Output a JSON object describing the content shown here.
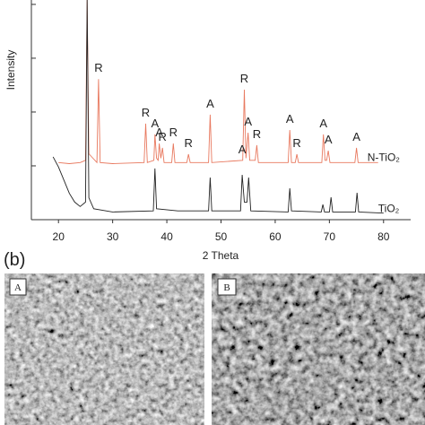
{
  "chart_data": {
    "type": "line",
    "x_label": "2 Theta",
    "y_label": "Intensity",
    "xlim": [
      15,
      85
    ],
    "xticks": [
      20,
      30,
      40,
      50,
      60,
      70,
      80
    ],
    "ylim": [
      0,
      100
    ],
    "yticks": [
      24.5,
      49,
      73.5,
      98
    ],
    "series": [
      {
        "name": "N-TiO₂",
        "color": "#e8785e",
        "x": [
          20,
          22,
          24,
          25.0,
          25.3,
          25.6,
          27.1,
          27.4,
          27.7,
          30,
          35.8,
          36.1,
          36.4,
          37.6,
          37.8,
          38.1,
          38.4,
          38.6,
          38.9,
          39.2,
          39.5,
          40.9,
          41.2,
          41.5,
          43.7,
          44.0,
          44.3,
          47.7,
          48.0,
          48.3,
          54.0,
          54.3,
          54.6,
          55.0,
          55.3,
          56.3,
          56.6,
          56.9,
          62.4,
          62.7,
          63.0,
          63.7,
          64.0,
          64.3,
          68.6,
          68.9,
          69.2,
          69.5,
          69.8,
          70.1,
          74.7,
          75.0,
          75.3,
          79
        ],
        "values": [
          26,
          25.5,
          26,
          27,
          100,
          30,
          26,
          64,
          26,
          25.5,
          26,
          43.7,
          26,
          27,
          38.8,
          28,
          27,
          34.7,
          28,
          32.7,
          26,
          26,
          34.7,
          26,
          26,
          29.8,
          26,
          26,
          47.8,
          26,
          27,
          59.2,
          28,
          39.6,
          27,
          27,
          33.9,
          26,
          26,
          40.8,
          26,
          26,
          29.8,
          26,
          26,
          38.8,
          27,
          27,
          31.4,
          26,
          26,
          32.7,
          26,
          26
        ]
      },
      {
        "name": "TiO₂",
        "color": "#222222",
        "x": [
          19,
          20,
          21,
          22,
          23,
          24,
          25.0,
          25.3,
          25.6,
          26.5,
          30,
          37.5,
          37.8,
          38.1,
          42,
          47.7,
          48.0,
          48.3,
          53.6,
          53.9,
          54.3,
          54.8,
          55.1,
          55.5,
          62.4,
          62.7,
          63.0,
          68.5,
          68.8,
          69.1,
          70.0,
          70.3,
          70.6,
          74.8,
          75.1,
          75.4,
          80
        ],
        "values": [
          28.6,
          24,
          18,
          12,
          8,
          6,
          8,
          100,
          10,
          5,
          3.5,
          4,
          23.3,
          5,
          4,
          4,
          19.2,
          4,
          4,
          20.4,
          8,
          8,
          19.2,
          4,
          3.5,
          14.3,
          4,
          3.5,
          6.9,
          3.5,
          3.5,
          10.2,
          3.5,
          3.5,
          12.2,
          3.5,
          3
        ]
      }
    ],
    "peak_labels": [
      {
        "label": "R",
        "x": 27.4
      },
      {
        "label": "R",
        "x": 36.1
      },
      {
        "label": "A",
        "x": 37.8
      },
      {
        "label": "A",
        "x": 38.6
      },
      {
        "label": "R",
        "x": 39.2
      },
      {
        "label": "R",
        "x": 41.2
      },
      {
        "label": "R",
        "x": 44.0
      },
      {
        "label": "A",
        "x": 48.0
      },
      {
        "label": "A",
        "x": 53.9
      },
      {
        "label": "R",
        "x": 54.3
      },
      {
        "label": "A",
        "x": 55.0
      },
      {
        "label": "R",
        "x": 56.6
      },
      {
        "label": "A",
        "x": 62.7
      },
      {
        "label": "R",
        "x": 64.0
      },
      {
        "label": "A",
        "x": 68.9
      },
      {
        "label": "A",
        "x": 69.8
      },
      {
        "label": "A",
        "x": 75.0
      }
    ]
  },
  "panel_b": {
    "label": "(b)",
    "images": [
      {
        "label": "A"
      },
      {
        "label": "B"
      }
    ]
  }
}
